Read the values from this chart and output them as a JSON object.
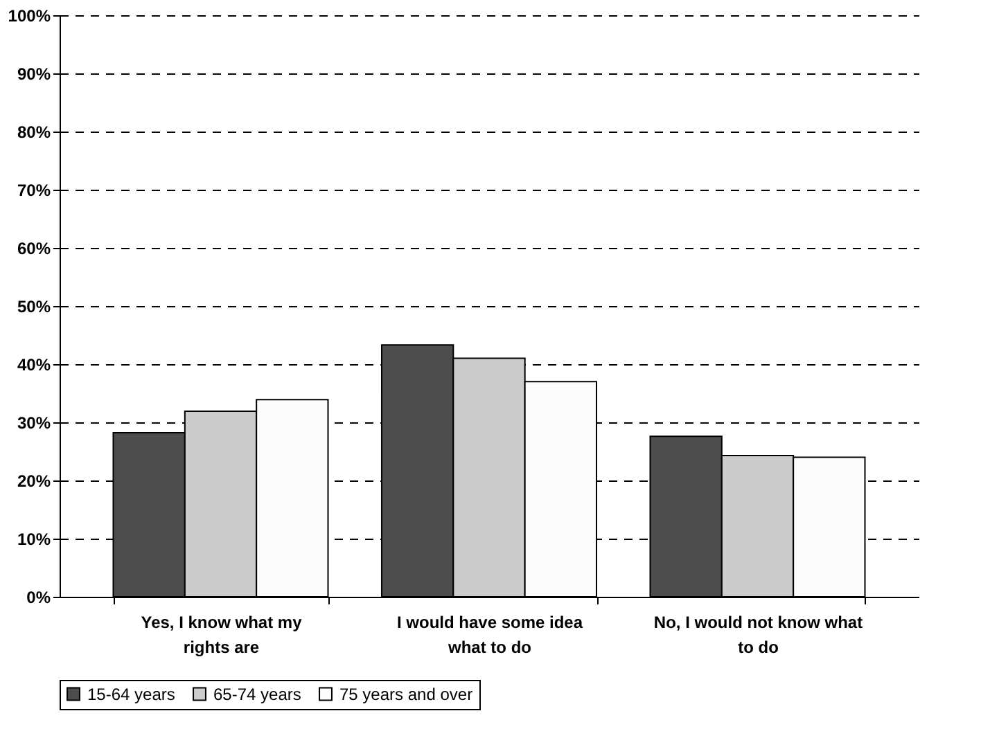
{
  "chart_data": {
    "type": "bar",
    "categories": [
      "Yes, I know what my rights are",
      "I would have some idea what to do",
      "No, I would not know what to do"
    ],
    "series": [
      {
        "name": "15-64 years",
        "color": "#4d4d4d",
        "values": [
          28.2,
          43.3,
          27.6
        ]
      },
      {
        "name": "65-74 years",
        "color": "#cccccc",
        "values": [
          31.9,
          41.0,
          24.3
        ]
      },
      {
        "name": "75 years and over",
        "color": "#fcfcfc",
        "values": [
          33.9,
          37.0,
          24.0
        ]
      }
    ],
    "ylim": [
      0,
      100
    ],
    "yticks": [
      {
        "value": 0,
        "label": "0%"
      },
      {
        "value": 10,
        "label": "10%"
      },
      {
        "value": 20,
        "label": "20%"
      },
      {
        "value": 30,
        "label": "30%"
      },
      {
        "value": 40,
        "label": "40%"
      },
      {
        "value": 50,
        "label": "50%"
      },
      {
        "value": 60,
        "label": "60%"
      },
      {
        "value": 70,
        "label": "70%"
      },
      {
        "value": 80,
        "label": "80%"
      },
      {
        "value": 90,
        "label": "90%"
      },
      {
        "value": 100,
        "label": "100%"
      }
    ],
    "grid": "y",
    "legend": "bottom"
  }
}
